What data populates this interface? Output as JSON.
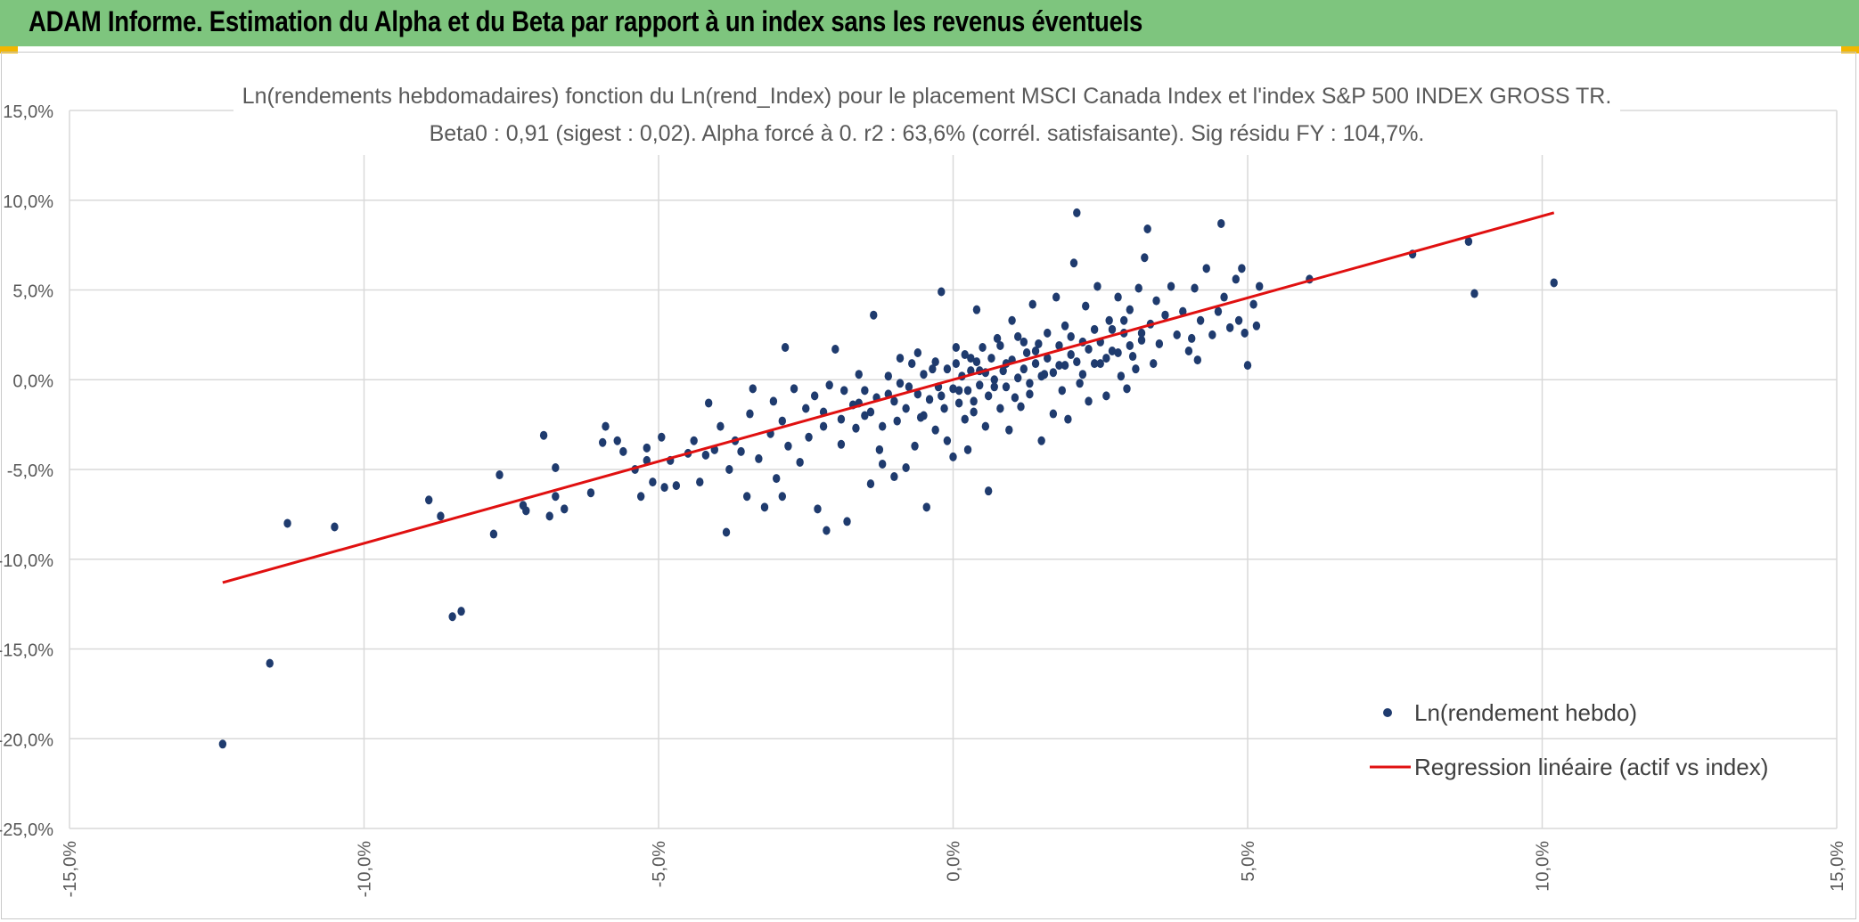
{
  "header": {
    "title": "ADAM Informe. Estimation du Alpha et du Beta par rapport à un index sans les revenus éventuels"
  },
  "colors": {
    "header_bg": "#7ec57e",
    "accent": "#f2b600",
    "points": "#1f3b6e",
    "regression": "#e01010",
    "grid": "#d9d9d9"
  },
  "chart_data": {
    "type": "scatter",
    "title_line1": "Ln(rendements hebdomadaires) fonction du Ln(rend_Index) pour le placement MSCI Canada Index et l'index S&P 500 INDEX GROSS TR.",
    "title_line2": "Beta0 : 0,91 (sigest : 0,02).  Alpha forcé à 0. r2 : 63,6% (corrél. satisfaisante). Sig résidu FY : 104,7%.",
    "xlim": [
      -15,
      15
    ],
    "ylim": [
      -25,
      15
    ],
    "x_ticks": [
      -15,
      -10,
      -5,
      0,
      5,
      10,
      15
    ],
    "y_ticks": [
      15,
      10,
      5,
      0,
      -5,
      -10,
      -15,
      -20,
      -25
    ],
    "x_tick_labels": [
      "-15,0%",
      "-10,0%",
      "-5,0%",
      "0,0%",
      "5,0%",
      "10,0%",
      "15,0%"
    ],
    "y_tick_labels": [
      "15,0%",
      "10,0%",
      "5,0%",
      "0,0%",
      "-5,0%",
      "-10,0%",
      "-15,0%",
      "-20,0%",
      "-25,0%"
    ],
    "grid": true,
    "legend_position": "bottom-right",
    "series": [
      {
        "name": "Ln(rendement hebdo)",
        "kind": "points",
        "points": [
          [
            -12.4,
            -20.3
          ],
          [
            -11.6,
            -15.8
          ],
          [
            -11.3,
            -8.0
          ],
          [
            -10.5,
            -8.2
          ],
          [
            -8.5,
            -13.2
          ],
          [
            -8.35,
            -12.9
          ],
          [
            -8.9,
            -6.7
          ],
          [
            -8.7,
            -7.6
          ],
          [
            -7.8,
            -8.6
          ],
          [
            -7.7,
            -5.3
          ],
          [
            -7.3,
            -7.0
          ],
          [
            -7.25,
            -7.3
          ],
          [
            -6.95,
            -3.1
          ],
          [
            -6.85,
            -7.6
          ],
          [
            -6.75,
            -6.5
          ],
          [
            -6.75,
            -4.9
          ],
          [
            -6.6,
            -7.2
          ],
          [
            -6.15,
            -6.3
          ],
          [
            -5.95,
            -3.5
          ],
          [
            -5.9,
            -2.6
          ],
          [
            -5.7,
            -3.4
          ],
          [
            -5.6,
            -4.0
          ],
          [
            -5.4,
            -5.0
          ],
          [
            -5.3,
            -6.5
          ],
          [
            -5.2,
            -4.5
          ],
          [
            -5.2,
            -3.8
          ],
          [
            -5.1,
            -5.7
          ],
          [
            -4.95,
            -3.2
          ],
          [
            -4.9,
            -6.0
          ],
          [
            -4.8,
            -4.5
          ],
          [
            -4.7,
            -5.9
          ],
          [
            -4.5,
            -4.1
          ],
          [
            -4.4,
            -3.4
          ],
          [
            -4.3,
            -5.7
          ],
          [
            -4.2,
            -4.2
          ],
          [
            -4.15,
            -1.3
          ],
          [
            -4.05,
            -3.9
          ],
          [
            -3.95,
            -2.6
          ],
          [
            -3.85,
            -8.5
          ],
          [
            -3.8,
            -5.0
          ],
          [
            -3.7,
            -3.4
          ],
          [
            -3.6,
            -4.0
          ],
          [
            -3.5,
            -6.5
          ],
          [
            -3.45,
            -1.9
          ],
          [
            -3.4,
            -0.5
          ],
          [
            -3.3,
            -4.4
          ],
          [
            -3.2,
            -7.1
          ],
          [
            -3.1,
            -3.0
          ],
          [
            -3.05,
            -1.2
          ],
          [
            -3.0,
            -5.5
          ],
          [
            -2.9,
            -6.5
          ],
          [
            -2.9,
            -2.3
          ],
          [
            -2.85,
            1.8
          ],
          [
            -2.8,
            -3.7
          ],
          [
            -2.7,
            -0.5
          ],
          [
            -2.6,
            -4.6
          ],
          [
            -2.5,
            -1.6
          ],
          [
            -2.45,
            -3.2
          ],
          [
            -2.35,
            -0.9
          ],
          [
            -2.3,
            -7.2
          ],
          [
            -2.2,
            -2.6
          ],
          [
            -2.15,
            -8.4
          ],
          [
            -2.1,
            -0.3
          ],
          [
            -2.0,
            1.7
          ],
          [
            -1.9,
            -3.6
          ],
          [
            -1.85,
            -0.6
          ],
          [
            -1.8,
            -7.9
          ],
          [
            -1.7,
            -1.4
          ],
          [
            -1.65,
            -2.7
          ],
          [
            -1.6,
            0.3
          ],
          [
            -1.5,
            -2.0
          ],
          [
            -1.4,
            -5.8
          ],
          [
            -1.35,
            3.6
          ],
          [
            -1.3,
            -1.0
          ],
          [
            -1.25,
            -3.9
          ],
          [
            -1.2,
            -4.7
          ],
          [
            -1.1,
            -0.8
          ],
          [
            -1.0,
            -5.4
          ],
          [
            -0.95,
            -2.3
          ],
          [
            -0.9,
            1.2
          ],
          [
            -0.8,
            -4.9
          ],
          [
            -0.75,
            -0.4
          ],
          [
            -0.65,
            -3.7
          ],
          [
            -0.6,
            1.5
          ],
          [
            -0.5,
            -2.0
          ],
          [
            -0.45,
            -7.1
          ],
          [
            -0.35,
            0.6
          ],
          [
            -0.3,
            -2.8
          ],
          [
            -0.2,
            4.9
          ],
          [
            -0.2,
            -0.9
          ],
          [
            -0.1,
            -3.4
          ],
          [
            0.0,
            -4.3
          ],
          [
            0.05,
            1.8
          ],
          [
            0.1,
            -0.6
          ],
          [
            0.2,
            -2.2
          ],
          [
            0.25,
            -3.9
          ],
          [
            0.3,
            1.2
          ],
          [
            0.35,
            -1.2
          ],
          [
            0.4,
            3.9
          ],
          [
            0.45,
            0.5
          ],
          [
            0.55,
            -2.6
          ],
          [
            0.6,
            -6.2
          ],
          [
            0.7,
            -0.4
          ],
          [
            0.75,
            2.3
          ],
          [
            0.8,
            -1.6
          ],
          [
            0.9,
            0.9
          ],
          [
            0.95,
            -2.8
          ],
          [
            1.0,
            3.3
          ],
          [
            1.1,
            0.1
          ],
          [
            1.15,
            -1.5
          ],
          [
            1.2,
            2.1
          ],
          [
            1.3,
            -0.8
          ],
          [
            1.35,
            4.2
          ],
          [
            1.4,
            1.6
          ],
          [
            1.5,
            -3.4
          ],
          [
            1.55,
            0.3
          ],
          [
            1.6,
            2.6
          ],
          [
            1.7,
            -1.9
          ],
          [
            1.75,
            4.6
          ],
          [
            1.8,
            0.8
          ],
          [
            1.85,
            -0.6
          ],
          [
            1.9,
            3.0
          ],
          [
            1.95,
            -2.2
          ],
          [
            2.0,
            1.4
          ],
          [
            2.05,
            6.5
          ],
          [
            2.1,
            9.3
          ],
          [
            2.15,
            -0.2
          ],
          [
            2.2,
            2.1
          ],
          [
            2.25,
            4.1
          ],
          [
            2.3,
            -1.2
          ],
          [
            2.4,
            2.8
          ],
          [
            2.45,
            5.2
          ],
          [
            2.5,
            0.9
          ],
          [
            2.6,
            -0.9
          ],
          [
            2.65,
            3.3
          ],
          [
            2.7,
            1.6
          ],
          [
            2.8,
            4.6
          ],
          [
            2.85,
            0.2
          ],
          [
            2.9,
            2.6
          ],
          [
            2.95,
            -0.5
          ],
          [
            3.0,
            3.9
          ],
          [
            3.05,
            1.3
          ],
          [
            3.15,
            5.1
          ],
          [
            3.2,
            2.2
          ],
          [
            3.25,
            6.8
          ],
          [
            3.3,
            8.4
          ],
          [
            3.35,
            3.1
          ],
          [
            3.4,
            0.9
          ],
          [
            3.45,
            4.4
          ],
          [
            3.5,
            2.0
          ],
          [
            3.6,
            3.6
          ],
          [
            3.7,
            5.2
          ],
          [
            3.8,
            2.5
          ],
          [
            3.9,
            3.8
          ],
          [
            4.0,
            1.6
          ],
          [
            4.05,
            2.3
          ],
          [
            4.1,
            5.1
          ],
          [
            4.15,
            1.1
          ],
          [
            4.2,
            3.3
          ],
          [
            4.3,
            6.2
          ],
          [
            4.4,
            2.5
          ],
          [
            4.5,
            3.8
          ],
          [
            4.55,
            8.7
          ],
          [
            4.6,
            4.6
          ],
          [
            4.7,
            2.9
          ],
          [
            4.8,
            5.6
          ],
          [
            4.85,
            3.3
          ],
          [
            4.9,
            6.2
          ],
          [
            4.95,
            2.6
          ],
          [
            5.0,
            0.8
          ],
          [
            5.1,
            4.2
          ],
          [
            5.15,
            3.0
          ],
          [
            5.2,
            5.2
          ],
          [
            6.05,
            5.6
          ],
          [
            7.8,
            7.0
          ],
          [
            8.75,
            7.7
          ],
          [
            8.85,
            4.8
          ],
          [
            10.2,
            5.4
          ],
          [
            -2.2,
            -1.8
          ],
          [
            -1.9,
            -2.2
          ],
          [
            -1.6,
            -1.3
          ],
          [
            -1.5,
            -0.6
          ],
          [
            -1.4,
            -1.8
          ],
          [
            -1.2,
            -2.6
          ],
          [
            -1.1,
            0.2
          ],
          [
            -1.0,
            -1.2
          ],
          [
            -0.9,
            -0.2
          ],
          [
            -0.8,
            -1.6
          ],
          [
            -0.7,
            0.9
          ],
          [
            -0.6,
            -0.8
          ],
          [
            -0.55,
            -2.1
          ],
          [
            -0.5,
            0.3
          ],
          [
            -0.4,
            -1.1
          ],
          [
            -0.3,
            1.0
          ],
          [
            -0.25,
            -0.4
          ],
          [
            -0.15,
            -1.6
          ],
          [
            -0.1,
            0.6
          ],
          [
            0.0,
            -0.5
          ],
          [
            0.05,
            0.9
          ],
          [
            0.1,
            -1.3
          ],
          [
            0.15,
            0.2
          ],
          [
            0.2,
            1.4
          ],
          [
            0.25,
            -0.6
          ],
          [
            0.3,
            0.5
          ],
          [
            0.35,
            -1.8
          ],
          [
            0.4,
            1.0
          ],
          [
            0.45,
            -0.3
          ],
          [
            0.5,
            1.8
          ],
          [
            0.55,
            0.4
          ],
          [
            0.6,
            -0.9
          ],
          [
            0.65,
            1.2
          ],
          [
            0.7,
            0.0
          ],
          [
            0.8,
            1.9
          ],
          [
            0.85,
            0.5
          ],
          [
            0.9,
            -0.4
          ],
          [
            1.0,
            1.1
          ],
          [
            1.05,
            -1.0
          ],
          [
            1.1,
            2.4
          ],
          [
            1.2,
            0.6
          ],
          [
            1.25,
            1.5
          ],
          [
            1.3,
            -0.2
          ],
          [
            1.4,
            0.9
          ],
          [
            1.45,
            2.0
          ],
          [
            1.5,
            0.2
          ],
          [
            1.6,
            1.2
          ],
          [
            1.7,
            0.4
          ],
          [
            1.8,
            1.9
          ],
          [
            1.9,
            0.8
          ],
          [
            2.0,
            2.4
          ],
          [
            2.1,
            1.0
          ],
          [
            2.2,
            0.3
          ],
          [
            2.3,
            1.7
          ],
          [
            2.4,
            0.9
          ],
          [
            2.5,
            2.1
          ],
          [
            2.6,
            1.2
          ],
          [
            2.7,
            2.8
          ],
          [
            2.8,
            1.5
          ],
          [
            2.9,
            3.3
          ],
          [
            3.0,
            1.9
          ],
          [
            3.1,
            0.6
          ],
          [
            3.2,
            2.6
          ]
        ]
      },
      {
        "name": "Regression linéaire (actif vs index)",
        "kind": "line",
        "points": [
          [
            -12.4,
            -11.3
          ],
          [
            10.2,
            9.3
          ]
        ]
      }
    ]
  }
}
